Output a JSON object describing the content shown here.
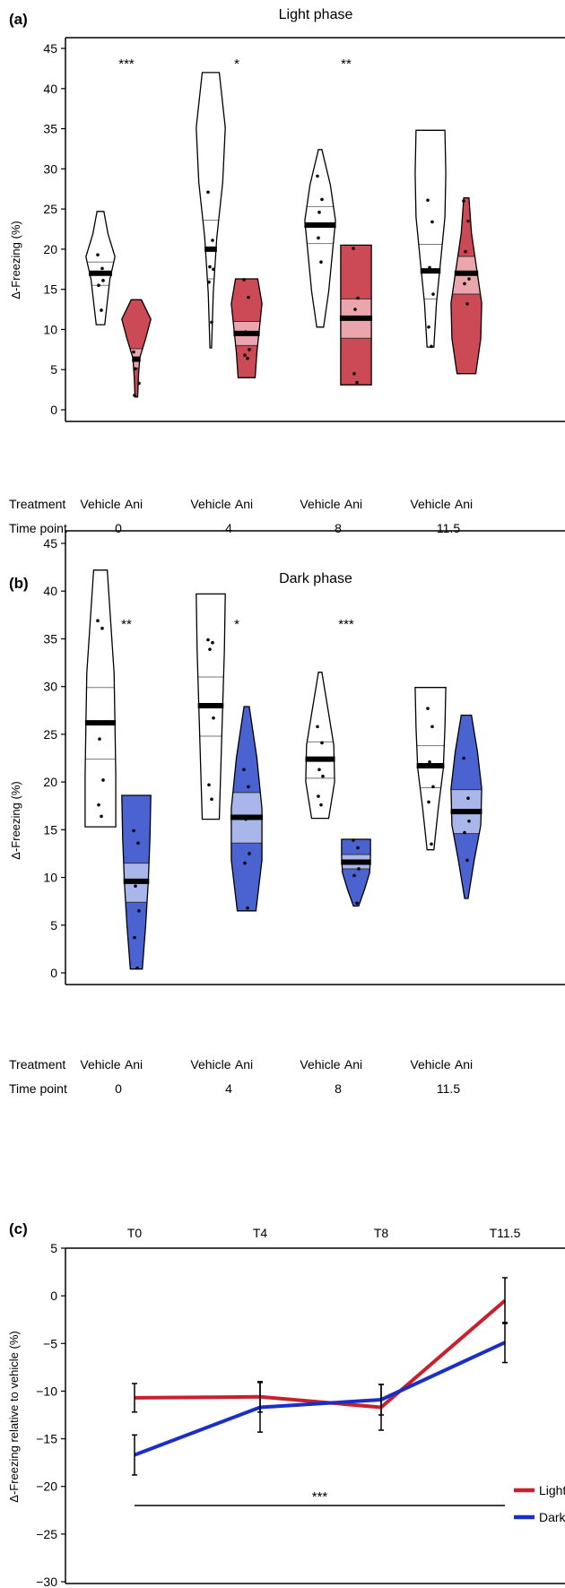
{
  "chart_data": [
    {
      "panel": "(a)",
      "type": "violin",
      "title": "Light phase",
      "ylabel": "Δ-Freezing (%)",
      "ylim": [
        0,
        45
      ],
      "yticks": [
        0,
        5,
        10,
        15,
        20,
        25,
        30,
        35,
        40,
        45
      ],
      "row_labels": {
        "treatment": "Treatment",
        "time": "Time point"
      },
      "colors": {
        "ani_fill": "#cc4a55",
        "ani_iqr": "#eba6ad",
        "vehicle_fill": "#ffffff"
      },
      "groups": [
        {
          "time": "0",
          "significance": "***",
          "vehicle": {
            "label": "Vehicle",
            "min": 10.6,
            "max": 24.7,
            "q1": 15.5,
            "median": 17.0,
            "q3": 18.4,
            "points": [
              19.3,
              17.6,
              17.0,
              16.1,
              15.5,
              12.4
            ],
            "widths": [
              0.2,
              0.45,
              0.85,
              0.55,
              0.4,
              0.25
            ]
          },
          "ani": {
            "label": "Ani",
            "min": 1.6,
            "max": 13.7,
            "q1": 5.2,
            "median": 6.3,
            "q3": 7.6,
            "points": [
              7.2,
              6.4,
              5.1,
              3.3,
              1.8
            ],
            "widths": [
              0.3,
              0.85,
              0.55,
              0.2,
              0.12,
              0.08
            ]
          }
        },
        {
          "time": "4",
          "significance": "*",
          "vehicle": {
            "label": "Vehicle",
            "min": 7.7,
            "max": 42.0,
            "q1": 16.3,
            "median": 20.0,
            "q3": 23.6,
            "points": [
              27.1,
              21.1,
              17.8,
              17.5,
              15.9,
              10.9
            ],
            "widths": [
              0.5,
              0.85,
              0.7,
              0.35,
              0.15,
              0.05
            ]
          },
          "ani": {
            "label": "Ani",
            "min": 4.0,
            "max": 16.3,
            "q1": 8.0,
            "median": 9.5,
            "q3": 11.0,
            "points": [
              16.2,
              14.0,
              9.7,
              7.5,
              6.8,
              6.4
            ],
            "widths": [
              0.65,
              0.9,
              0.75,
              0.6,
              0.5
            ]
          }
        },
        {
          "time": "8",
          "significance": "**",
          "vehicle": {
            "label": "Vehicle",
            "min": 10.3,
            "max": 32.4,
            "q1": 20.7,
            "median": 23.0,
            "q3": 25.3,
            "points": [
              29.1,
              26.2,
              24.6,
              23.1,
              21.4,
              18.4
            ],
            "widths": [
              0.1,
              0.6,
              0.9,
              0.7,
              0.5,
              0.2
            ]
          },
          "ani": {
            "label": "Ani",
            "min": 3.1,
            "max": 20.5,
            "q1": 8.9,
            "median": 11.4,
            "q3": 13.8,
            "points": [
              20.1,
              13.9,
              12.5,
              11.5,
              4.5,
              3.4
            ],
            "widths": [
              0.9,
              0.9,
              0.9,
              0.9,
              0.9
            ]
          }
        },
        {
          "time": "11.5",
          "significance": "",
          "vehicle": {
            "label": "Vehicle",
            "min": 7.8,
            "max": 34.8,
            "q1": 13.8,
            "median": 17.3,
            "q3": 20.6,
            "points": [
              26.1,
              23.4,
              17.7,
              14.4,
              10.3,
              7.9
            ],
            "widths": [
              0.85,
              0.9,
              0.85,
              0.6,
              0.35,
              0.2
            ]
          },
          "ani": {
            "label": "Ani",
            "min": 4.5,
            "max": 26.4,
            "q1": 14.4,
            "median": 17.0,
            "q3": 19.1,
            "points": [
              26.0,
              23.5,
              19.7,
              16.3,
              15.7,
              13.2
            ],
            "widths": [
              0.15,
              0.3,
              0.6,
              0.9,
              0.85,
              0.55
            ]
          }
        }
      ]
    },
    {
      "panel": "(b)",
      "type": "violin",
      "title": "Dark phase",
      "ylabel": "Δ-Freezing (%)",
      "ylim": [
        0,
        45
      ],
      "yticks": [
        0,
        5,
        10,
        15,
        20,
        25,
        30,
        35,
        40,
        45
      ],
      "row_labels": {
        "treatment": "Treatment",
        "time": "Time point"
      },
      "colors": {
        "ani_fill": "#4a63d0",
        "ani_iqr": "#a9b6ea",
        "vehicle_fill": "#ffffff"
      },
      "groups": [
        {
          "time": "0",
          "significance": "**",
          "vehicle": {
            "label": "Vehicle",
            "min": 15.3,
            "max": 42.2,
            "q1": 22.4,
            "median": 26.2,
            "q3": 29.9,
            "points": [
              36.9,
              36.1,
              24.5,
              20.2,
              17.6,
              16.4
            ],
            "widths": [
              0.4,
              0.6,
              0.8,
              0.85,
              0.9,
              0.9
            ]
          },
          "ani": {
            "label": "Ani",
            "min": 0.4,
            "max": 18.6,
            "q1": 7.4,
            "median": 9.6,
            "q3": 11.5,
            "points": [
              14.9,
              13.6,
              9.1,
              6.5,
              3.7,
              0.5
            ],
            "widths": [
              0.85,
              0.8,
              0.7,
              0.55,
              0.35
            ]
          }
        },
        {
          "time": "4",
          "significance": "*",
          "vehicle": {
            "label": "Vehicle",
            "min": 16.1,
            "max": 39.7,
            "q1": 24.8,
            "median": 28.0,
            "q3": 31.0,
            "points": [
              34.9,
              34.6,
              33.9,
              26.7,
              19.7,
              18.2
            ],
            "widths": [
              0.85,
              0.8,
              0.7,
              0.6,
              0.5
            ]
          },
          "ani": {
            "label": "Ani",
            "min": 6.5,
            "max": 27.9,
            "q1": 13.6,
            "median": 16.3,
            "q3": 18.9,
            "points": [
              21.3,
              19.5,
              16.1,
              12.5,
              11.5,
              6.8
            ],
            "widths": [
              0.15,
              0.6,
              0.9,
              0.9,
              0.55
            ]
          }
        },
        {
          "time": "8",
          "significance": "***",
          "vehicle": {
            "label": "Vehicle",
            "min": 16.2,
            "max": 31.5,
            "q1": 20.4,
            "median": 22.4,
            "q3": 24.2,
            "points": [
              25.8,
              24.1,
              21.3,
              20.6,
              18.5,
              17.6
            ],
            "widths": [
              0.1,
              0.45,
              0.8,
              0.85,
              0.5
            ]
          },
          "ani": {
            "label": "Ani",
            "min": 7.0,
            "max": 14.0,
            "q1": 10.9,
            "median": 11.6,
            "q3": 12.4,
            "points": [
              13.9,
              13.1,
              11.5,
              10.9,
              10.2,
              7.3
            ],
            "widths": [
              0.85,
              0.85,
              0.8,
              0.5,
              0.15
            ]
          }
        },
        {
          "time": "11.5",
          "significance": "",
          "vehicle": {
            "label": "Vehicle",
            "min": 12.9,
            "max": 29.9,
            "q1": 19.4,
            "median": 21.7,
            "q3": 23.8,
            "points": [
              27.7,
              25.8,
              22.1,
              19.5,
              17.9,
              13.5
            ],
            "widths": [
              0.9,
              0.85,
              0.75,
              0.45,
              0.2
            ]
          },
          "ani": {
            "label": "Ani",
            "min": 7.8,
            "max": 27.0,
            "q1": 14.6,
            "median": 16.9,
            "q3": 19.2,
            "points": [
              22.5,
              18.3,
              16.8,
              15.9,
              14.7,
              11.8
            ],
            "widths": [
              0.3,
              0.65,
              0.9,
              0.85,
              0.45,
              0.1
            ]
          }
        }
      ]
    },
    {
      "panel": "(c)",
      "type": "line",
      "ylabel": "Δ-Freezing relative to vehicle (%)",
      "ylim": [
        -30,
        5
      ],
      "yticks": [
        5,
        0,
        -5,
        -10,
        -15,
        -20,
        -25,
        -30
      ],
      "ytick_labels": [
        "5",
        "0",
        "−5",
        "−10",
        "−15",
        "−20",
        "−25",
        "−30"
      ],
      "x_labels": [
        "T0",
        "T4",
        "T8",
        "T11.5"
      ],
      "significance": {
        "label": "***",
        "y": -22.0,
        "from": "T0",
        "to": "T11.5"
      },
      "legend_position": "right",
      "series": [
        {
          "name": "Light",
          "color": "#c8202c",
          "values": [
            -10.7,
            -10.6,
            -11.7,
            -0.5
          ],
          "errors": [
            1.5,
            1.6,
            2.4,
            2.4
          ]
        },
        {
          "name": "Dark",
          "color": "#1a2fc4",
          "values": [
            -16.7,
            -11.7,
            -10.9,
            -4.9
          ],
          "errors": [
            2.1,
            2.6,
            1.6,
            2.1
          ]
        }
      ]
    }
  ]
}
